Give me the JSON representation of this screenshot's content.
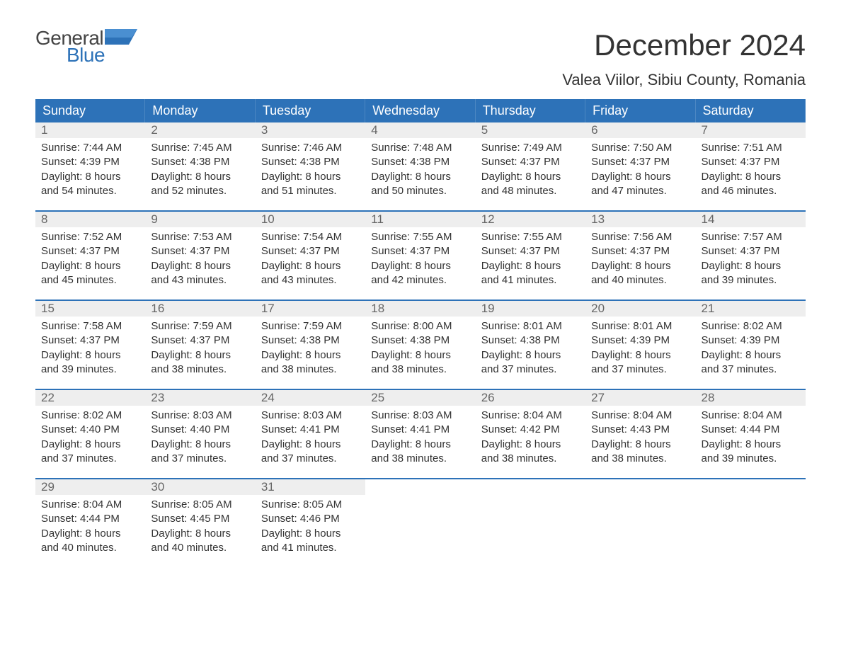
{
  "logo": {
    "top": "General",
    "bottom": "Blue"
  },
  "title": "December 2024",
  "subtitle": "Valea Viilor, Sibiu County, Romania",
  "colors": {
    "header_bg": "#2d72b8",
    "header_text": "#ffffff",
    "daynum_bg": "#eeeeee",
    "daynum_text": "#666666",
    "body_text": "#333333",
    "logo_blue": "#2d72b8",
    "page_bg": "#ffffff"
  },
  "day_headers": [
    "Sunday",
    "Monday",
    "Tuesday",
    "Wednesday",
    "Thursday",
    "Friday",
    "Saturday"
  ],
  "weeks": [
    [
      {
        "num": "1",
        "sunrise": "Sunrise: 7:44 AM",
        "sunset": "Sunset: 4:39 PM",
        "d1": "Daylight: 8 hours",
        "d2": "and 54 minutes."
      },
      {
        "num": "2",
        "sunrise": "Sunrise: 7:45 AM",
        "sunset": "Sunset: 4:38 PM",
        "d1": "Daylight: 8 hours",
        "d2": "and 52 minutes."
      },
      {
        "num": "3",
        "sunrise": "Sunrise: 7:46 AM",
        "sunset": "Sunset: 4:38 PM",
        "d1": "Daylight: 8 hours",
        "d2": "and 51 minutes."
      },
      {
        "num": "4",
        "sunrise": "Sunrise: 7:48 AM",
        "sunset": "Sunset: 4:38 PM",
        "d1": "Daylight: 8 hours",
        "d2": "and 50 minutes."
      },
      {
        "num": "5",
        "sunrise": "Sunrise: 7:49 AM",
        "sunset": "Sunset: 4:37 PM",
        "d1": "Daylight: 8 hours",
        "d2": "and 48 minutes."
      },
      {
        "num": "6",
        "sunrise": "Sunrise: 7:50 AM",
        "sunset": "Sunset: 4:37 PM",
        "d1": "Daylight: 8 hours",
        "d2": "and 47 minutes."
      },
      {
        "num": "7",
        "sunrise": "Sunrise: 7:51 AM",
        "sunset": "Sunset: 4:37 PM",
        "d1": "Daylight: 8 hours",
        "d2": "and 46 minutes."
      }
    ],
    [
      {
        "num": "8",
        "sunrise": "Sunrise: 7:52 AM",
        "sunset": "Sunset: 4:37 PM",
        "d1": "Daylight: 8 hours",
        "d2": "and 45 minutes."
      },
      {
        "num": "9",
        "sunrise": "Sunrise: 7:53 AM",
        "sunset": "Sunset: 4:37 PM",
        "d1": "Daylight: 8 hours",
        "d2": "and 43 minutes."
      },
      {
        "num": "10",
        "sunrise": "Sunrise: 7:54 AM",
        "sunset": "Sunset: 4:37 PM",
        "d1": "Daylight: 8 hours",
        "d2": "and 43 minutes."
      },
      {
        "num": "11",
        "sunrise": "Sunrise: 7:55 AM",
        "sunset": "Sunset: 4:37 PM",
        "d1": "Daylight: 8 hours",
        "d2": "and 42 minutes."
      },
      {
        "num": "12",
        "sunrise": "Sunrise: 7:55 AM",
        "sunset": "Sunset: 4:37 PM",
        "d1": "Daylight: 8 hours",
        "d2": "and 41 minutes."
      },
      {
        "num": "13",
        "sunrise": "Sunrise: 7:56 AM",
        "sunset": "Sunset: 4:37 PM",
        "d1": "Daylight: 8 hours",
        "d2": "and 40 minutes."
      },
      {
        "num": "14",
        "sunrise": "Sunrise: 7:57 AM",
        "sunset": "Sunset: 4:37 PM",
        "d1": "Daylight: 8 hours",
        "d2": "and 39 minutes."
      }
    ],
    [
      {
        "num": "15",
        "sunrise": "Sunrise: 7:58 AM",
        "sunset": "Sunset: 4:37 PM",
        "d1": "Daylight: 8 hours",
        "d2": "and 39 minutes."
      },
      {
        "num": "16",
        "sunrise": "Sunrise: 7:59 AM",
        "sunset": "Sunset: 4:37 PM",
        "d1": "Daylight: 8 hours",
        "d2": "and 38 minutes."
      },
      {
        "num": "17",
        "sunrise": "Sunrise: 7:59 AM",
        "sunset": "Sunset: 4:38 PM",
        "d1": "Daylight: 8 hours",
        "d2": "and 38 minutes."
      },
      {
        "num": "18",
        "sunrise": "Sunrise: 8:00 AM",
        "sunset": "Sunset: 4:38 PM",
        "d1": "Daylight: 8 hours",
        "d2": "and 38 minutes."
      },
      {
        "num": "19",
        "sunrise": "Sunrise: 8:01 AM",
        "sunset": "Sunset: 4:38 PM",
        "d1": "Daylight: 8 hours",
        "d2": "and 37 minutes."
      },
      {
        "num": "20",
        "sunrise": "Sunrise: 8:01 AM",
        "sunset": "Sunset: 4:39 PM",
        "d1": "Daylight: 8 hours",
        "d2": "and 37 minutes."
      },
      {
        "num": "21",
        "sunrise": "Sunrise: 8:02 AM",
        "sunset": "Sunset: 4:39 PM",
        "d1": "Daylight: 8 hours",
        "d2": "and 37 minutes."
      }
    ],
    [
      {
        "num": "22",
        "sunrise": "Sunrise: 8:02 AM",
        "sunset": "Sunset: 4:40 PM",
        "d1": "Daylight: 8 hours",
        "d2": "and 37 minutes."
      },
      {
        "num": "23",
        "sunrise": "Sunrise: 8:03 AM",
        "sunset": "Sunset: 4:40 PM",
        "d1": "Daylight: 8 hours",
        "d2": "and 37 minutes."
      },
      {
        "num": "24",
        "sunrise": "Sunrise: 8:03 AM",
        "sunset": "Sunset: 4:41 PM",
        "d1": "Daylight: 8 hours",
        "d2": "and 37 minutes."
      },
      {
        "num": "25",
        "sunrise": "Sunrise: 8:03 AM",
        "sunset": "Sunset: 4:41 PM",
        "d1": "Daylight: 8 hours",
        "d2": "and 38 minutes."
      },
      {
        "num": "26",
        "sunrise": "Sunrise: 8:04 AM",
        "sunset": "Sunset: 4:42 PM",
        "d1": "Daylight: 8 hours",
        "d2": "and 38 minutes."
      },
      {
        "num": "27",
        "sunrise": "Sunrise: 8:04 AM",
        "sunset": "Sunset: 4:43 PM",
        "d1": "Daylight: 8 hours",
        "d2": "and 38 minutes."
      },
      {
        "num": "28",
        "sunrise": "Sunrise: 8:04 AM",
        "sunset": "Sunset: 4:44 PM",
        "d1": "Daylight: 8 hours",
        "d2": "and 39 minutes."
      }
    ],
    [
      {
        "num": "29",
        "sunrise": "Sunrise: 8:04 AM",
        "sunset": "Sunset: 4:44 PM",
        "d1": "Daylight: 8 hours",
        "d2": "and 40 minutes."
      },
      {
        "num": "30",
        "sunrise": "Sunrise: 8:05 AM",
        "sunset": "Sunset: 4:45 PM",
        "d1": "Daylight: 8 hours",
        "d2": "and 40 minutes."
      },
      {
        "num": "31",
        "sunrise": "Sunrise: 8:05 AM",
        "sunset": "Sunset: 4:46 PM",
        "d1": "Daylight: 8 hours",
        "d2": "and 41 minutes."
      },
      {
        "empty": true
      },
      {
        "empty": true
      },
      {
        "empty": true
      },
      {
        "empty": true
      }
    ]
  ]
}
